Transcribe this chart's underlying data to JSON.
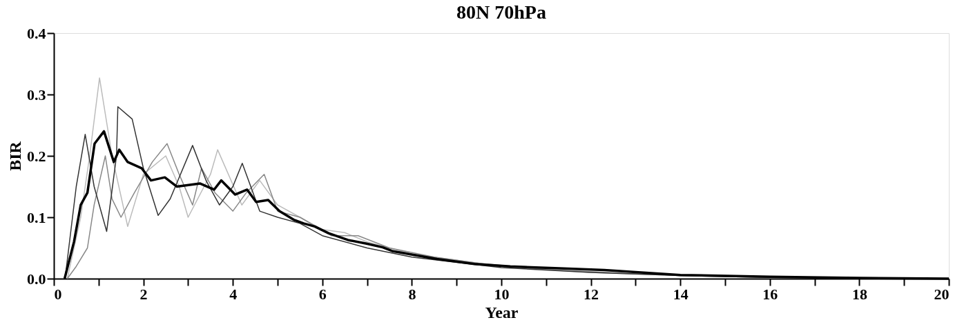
{
  "chart_data": {
    "type": "line",
    "title": "80N 70hPa",
    "xlabel": "Year",
    "ylabel": "BIR",
    "xlim": [
      0,
      20
    ],
    "ylim": [
      0,
      0.4
    ],
    "xticks": [
      0,
      {
        "value": 1,
        "label": null
      },
      2,
      {
        "value": 3,
        "label": null
      },
      4,
      {
        "value": 5,
        "label": null
      },
      6,
      {
        "value": 7,
        "label": null
      },
      8,
      {
        "value": 9,
        "label": null
      },
      10,
      {
        "value": 11,
        "label": null
      },
      12,
      {
        "value": 13,
        "label": null
      },
      14,
      {
        "value": 15,
        "label": null
      },
      16,
      {
        "value": 17,
        "label": null
      },
      18,
      {
        "value": 19,
        "label": null
      },
      20
    ],
    "yticks": [
      {
        "value": 0,
        "label": "0.0"
      },
      {
        "value": 0.1,
        "label": "0.1"
      },
      {
        "value": 0.2,
        "label": "0.2"
      },
      {
        "value": 0.3,
        "label": "0.3"
      },
      {
        "value": 0.4,
        "label": "0.4"
      }
    ],
    "grid": false,
    "legend": false,
    "marker": "none",
    "line_style": "solid",
    "series": [
      {
        "color": "#bbbbbb",
        "x": [
          0.3,
          0.6,
          0.8,
          1.02,
          1.3,
          1.65,
          2.0,
          2.5,
          2.8,
          3.0,
          3.5,
          3.66,
          4.2,
          4.6,
          5.0,
          5.5,
          6,
          6.5,
          7,
          8,
          9,
          10,
          11,
          12,
          14,
          16,
          20
        ],
        "values": [
          0,
          0.1,
          0.2,
          0.327,
          0.2,
          0.085,
          0.17,
          0.2,
          0.15,
          0.1,
          0.17,
          0.21,
          0.12,
          0.16,
          0.12,
          0.1,
          0.08,
          0.075,
          0.06,
          0.04,
          0.03,
          0.02,
          0.015,
          0.01,
          0.005,
          0.002,
          0
        ]
      },
      {
        "color": "#888888",
        "x": [
          0.3,
          0.5,
          0.75,
          0.9,
          1.15,
          1.3,
          1.5,
          1.8,
          2.2,
          2.53,
          2.8,
          3.1,
          3.3,
          3.6,
          4.0,
          4.3,
          4.7,
          5.0,
          5.5,
          6.2,
          6.8,
          7.5,
          8.5,
          9.5,
          11,
          13,
          15,
          20
        ],
        "values": [
          0,
          0.02,
          0.05,
          0.12,
          0.2,
          0.13,
          0.1,
          0.14,
          0.19,
          0.22,
          0.17,
          0.12,
          0.18,
          0.14,
          0.11,
          0.14,
          0.17,
          0.11,
          0.1,
          0.07,
          0.07,
          0.05,
          0.035,
          0.025,
          0.015,
          0.008,
          0.004,
          0
        ]
      },
      {
        "color": "#333333",
        "x": [
          0.25,
          0.5,
          0.7,
          0.9,
          1.18,
          1.4,
          1.43,
          1.75,
          2.0,
          2.33,
          2.6,
          3.1,
          3.4,
          3.7,
          4.0,
          4.21,
          4.6,
          5.0,
          5.5,
          6,
          7,
          8,
          10,
          12,
          14,
          16,
          20
        ],
        "values": [
          0,
          0.15,
          0.235,
          0.15,
          0.077,
          0.2,
          0.28,
          0.26,
          0.18,
          0.103,
          0.13,
          0.217,
          0.16,
          0.12,
          0.15,
          0.188,
          0.11,
          0.1,
          0.09,
          0.07,
          0.05,
          0.035,
          0.018,
          0.01,
          0.005,
          0.002,
          0
        ]
      },
      {
        "color": "#000000",
        "x": [
          0.24,
          0.45,
          0.6,
          0.75,
          0.91,
          1.12,
          1.34,
          1.46,
          1.65,
          1.96,
          2.17,
          2.48,
          2.75,
          3.27,
          3.58,
          3.74,
          4.05,
          4.32,
          4.52,
          4.79,
          5.04,
          5.36,
          5.58,
          5.83,
          6.14,
          6.57,
          6.99,
          7.35,
          7.56,
          8.56,
          9.4,
          10.2,
          11.2,
          12.3,
          14,
          16,
          18,
          20
        ],
        "values": [
          0,
          0.06,
          0.12,
          0.14,
          0.22,
          0.24,
          0.19,
          0.21,
          0.19,
          0.18,
          0.16,
          0.165,
          0.15,
          0.155,
          0.145,
          0.16,
          0.137,
          0.145,
          0.125,
          0.128,
          0.11,
          0.096,
          0.09,
          0.085,
          0.074,
          0.063,
          0.057,
          0.051,
          0.045,
          0.032,
          0.024,
          0.02,
          0.017,
          0.014,
          0.006,
          0.003,
          0.001,
          0
        ]
      }
    ]
  }
}
